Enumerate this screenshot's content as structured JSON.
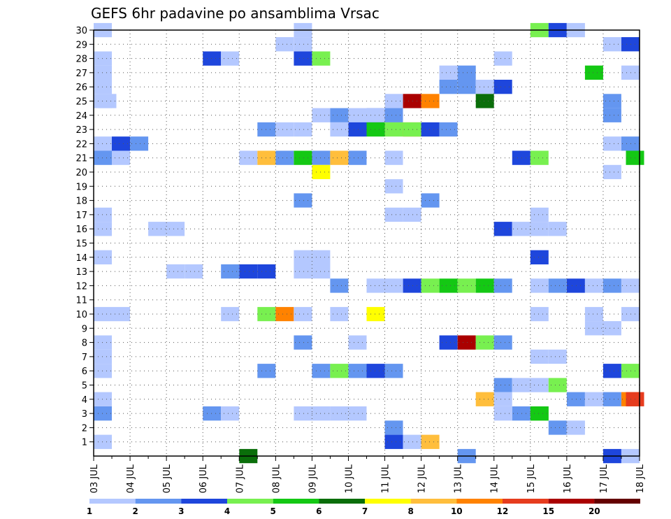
{
  "chart_data": {
    "type": "heatmap",
    "title": "GEFS 6hr padavine po ansamblima Vrsac",
    "x_ticks": [
      "03 JUL",
      "04 JUL",
      "05 JUL",
      "06 JUL",
      "07 JUL",
      "08 JUL",
      "09 JUL",
      "10 JUL",
      "11 JUL",
      "12 JUL",
      "13 JUL",
      "14 JUL",
      "15 JUL",
      "16 JUL",
      "17 JUL",
      "18 JUL"
    ],
    "y_ticks": [
      "1",
      "2",
      "3",
      "4",
      "5",
      "6",
      "7",
      "8",
      "9",
      "10",
      "11",
      "12",
      "13",
      "14",
      "15",
      "16",
      "17",
      "18",
      "19",
      "20",
      "21",
      "22",
      "23",
      "24",
      "25",
      "26",
      "27",
      "28",
      "29",
      "30"
    ],
    "legend": {
      "colors": [
        "#b4c8ff",
        "#6496f0",
        "#1e46dc",
        "#78f050",
        "#14c814",
        "#0a6e0a",
        "#ffff00",
        "#ffbe3c",
        "#ff8200",
        "#e63c1e",
        "#aa0000",
        "#640000"
      ],
      "labels": [
        "1",
        "2",
        "3",
        "4",
        "5",
        "6",
        "7",
        "8",
        "10",
        "12",
        "15",
        "20"
      ]
    },
    "grid": true,
    "cells": [
      [
        0.5,
        30,
        1
      ],
      [
        11.5,
        30,
        1
      ],
      [
        24.5,
        30,
        4
      ],
      [
        25.5,
        30,
        3
      ],
      [
        26.5,
        30,
        1
      ],
      [
        10.5,
        29,
        1
      ],
      [
        11.5,
        29,
        1
      ],
      [
        28.5,
        29,
        1
      ],
      [
        29.5,
        29,
        3
      ],
      [
        0.5,
        28,
        1
      ],
      [
        6.5,
        28,
        3
      ],
      [
        7.5,
        28,
        1
      ],
      [
        11.5,
        28,
        3
      ],
      [
        12.5,
        28,
        4
      ],
      [
        22.5,
        28,
        1
      ],
      [
        0.5,
        27,
        1
      ],
      [
        19.5,
        27,
        1
      ],
      [
        20.5,
        27,
        2
      ],
      [
        27.5,
        27,
        5
      ],
      [
        29.5,
        27,
        1
      ],
      [
        0.5,
        26,
        1
      ],
      [
        19.5,
        26,
        2
      ],
      [
        20.5,
        26,
        2
      ],
      [
        21.5,
        26,
        1
      ],
      [
        22.5,
        26,
        3
      ],
      [
        0.5,
        25,
        1
      ],
      [
        0.75,
        25,
        1
      ],
      [
        16.5,
        25,
        1
      ],
      [
        17.5,
        25,
        11
      ],
      [
        18.5,
        25,
        9
      ],
      [
        21.5,
        25,
        6
      ],
      [
        28.5,
        25,
        2
      ],
      [
        12.5,
        24,
        1
      ],
      [
        13.5,
        24,
        2
      ],
      [
        14.5,
        24,
        1
      ],
      [
        15.5,
        24,
        3
      ],
      [
        15.5,
        24,
        1
      ],
      [
        16.5,
        24,
        1
      ],
      [
        16.5,
        24,
        2
      ],
      [
        28.5,
        24,
        2
      ],
      [
        9.5,
        23,
        2
      ],
      [
        10.5,
        23,
        1
      ],
      [
        11.5,
        23,
        1
      ],
      [
        13.5,
        23,
        1
      ],
      [
        14.5,
        23,
        3
      ],
      [
        15.5,
        23,
        5
      ],
      [
        16.5,
        23,
        4
      ],
      [
        17.5,
        23,
        9
      ],
      [
        17.5,
        23,
        4
      ],
      [
        18.5,
        23,
        3
      ],
      [
        19.5,
        23,
        2
      ],
      [
        0.5,
        22,
        1
      ],
      [
        1.5,
        22,
        3
      ],
      [
        2.5,
        22,
        2
      ],
      [
        28.5,
        22,
        1
      ],
      [
        29.5,
        22,
        2
      ],
      [
        0.5,
        21,
        2
      ],
      [
        1.5,
        21,
        1
      ],
      [
        8.5,
        21,
        1
      ],
      [
        9.5,
        21,
        8
      ],
      [
        10.5,
        21,
        2
      ],
      [
        11.5,
        21,
        5
      ],
      [
        12.5,
        21,
        2
      ],
      [
        13.5,
        21,
        8
      ],
      [
        14.5,
        21,
        2
      ],
      [
        16.5,
        21,
        1
      ],
      [
        23.5,
        21,
        3
      ],
      [
        24.5,
        21,
        4
      ],
      [
        29.75,
        21,
        5
      ],
      [
        12.5,
        20,
        7
      ],
      [
        28.5,
        20,
        1
      ],
      [
        16.5,
        19,
        1
      ],
      [
        11.5,
        18,
        2
      ],
      [
        18.5,
        18,
        2
      ],
      [
        0.5,
        17,
        1
      ],
      [
        16.5,
        17,
        1
      ],
      [
        17.5,
        17,
        1
      ],
      [
        24.5,
        17,
        1
      ],
      [
        0.5,
        16,
        1
      ],
      [
        3.5,
        16,
        1
      ],
      [
        4.5,
        16,
        1
      ],
      [
        22.5,
        16,
        3
      ],
      [
        23.5,
        16,
        1
      ],
      [
        24.5,
        16,
        1
      ],
      [
        25.5,
        16,
        1
      ],
      [
        0.5,
        14,
        1
      ],
      [
        11.5,
        14,
        1
      ],
      [
        12.5,
        14,
        1
      ],
      [
        24.5,
        14,
        3
      ],
      [
        4.5,
        13,
        1
      ],
      [
        5.5,
        13,
        1
      ],
      [
        7.5,
        13,
        2
      ],
      [
        8.5,
        13,
        3
      ],
      [
        9.5,
        13,
        3
      ],
      [
        11.5,
        13,
        1
      ],
      [
        12.5,
        13,
        1
      ],
      [
        13.5,
        12,
        2
      ],
      [
        15.5,
        12,
        1
      ],
      [
        16.5,
        12,
        1
      ],
      [
        17.5,
        12,
        3
      ],
      [
        18.5,
        12,
        4
      ],
      [
        19.5,
        12,
        5
      ],
      [
        20.5,
        12,
        4
      ],
      [
        21.5,
        12,
        5
      ],
      [
        22.5,
        12,
        2
      ],
      [
        24.5,
        12,
        1
      ],
      [
        25.5,
        12,
        2
      ],
      [
        26.5,
        12,
        3
      ],
      [
        27.5,
        12,
        1
      ],
      [
        28.5,
        12,
        2
      ],
      [
        29.5,
        12,
        1
      ],
      [
        0.5,
        10,
        1
      ],
      [
        1.5,
        10,
        1
      ],
      [
        7.5,
        10,
        1
      ],
      [
        9.5,
        10,
        4
      ],
      [
        10.5,
        10,
        9
      ],
      [
        11.5,
        10,
        1
      ],
      [
        13.5,
        10,
        1
      ],
      [
        15.5,
        10,
        7
      ],
      [
        24.5,
        10,
        1
      ],
      [
        27.5,
        10,
        1
      ],
      [
        29.5,
        10,
        1
      ],
      [
        27.5,
        9,
        1
      ],
      [
        28.5,
        9,
        1
      ],
      [
        0.5,
        8,
        1
      ],
      [
        11.5,
        8,
        2
      ],
      [
        14.5,
        8,
        1
      ],
      [
        19.5,
        8,
        3
      ],
      [
        20.5,
        8,
        11
      ],
      [
        21.5,
        8,
        4
      ],
      [
        22.5,
        8,
        2
      ],
      [
        0.5,
        7,
        1
      ],
      [
        24.5,
        7,
        1
      ],
      [
        25.5,
        7,
        1
      ],
      [
        0.5,
        6,
        1
      ],
      [
        9.5,
        6,
        2
      ],
      [
        12.5,
        6,
        2
      ],
      [
        13.5,
        6,
        4
      ],
      [
        14.5,
        6,
        2
      ],
      [
        15.5,
        6,
        3
      ],
      [
        16.5,
        6,
        2
      ],
      [
        28.5,
        6,
        3
      ],
      [
        29.5,
        6,
        4
      ],
      [
        22.5,
        5,
        2
      ],
      [
        23.5,
        5,
        1
      ],
      [
        24.5,
        5,
        1
      ],
      [
        25.5,
        5,
        4
      ],
      [
        0.5,
        4,
        1
      ],
      [
        21.5,
        4,
        8
      ],
      [
        22.5,
        4,
        1
      ],
      [
        26.5,
        4,
        2
      ],
      [
        27.5,
        4,
        1
      ],
      [
        28.5,
        4,
        2
      ],
      [
        29.5,
        4,
        9
      ],
      [
        29.75,
        4,
        10
      ],
      [
        0.5,
        3,
        2
      ],
      [
        6.5,
        3,
        2
      ],
      [
        7.5,
        3,
        1
      ],
      [
        11.5,
        3,
        1
      ],
      [
        12.5,
        3,
        1
      ],
      [
        13.5,
        3,
        1
      ],
      [
        14.5,
        3,
        1
      ],
      [
        22.5,
        3,
        1
      ],
      [
        23.5,
        3,
        2
      ],
      [
        24.5,
        3,
        4
      ],
      [
        24.5,
        3,
        5
      ],
      [
        16.5,
        2,
        2
      ],
      [
        25.5,
        2,
        2
      ],
      [
        26.5,
        2,
        1
      ],
      [
        0.5,
        1,
        1
      ],
      [
        16.5,
        1,
        3
      ],
      [
        17.5,
        1,
        1
      ],
      [
        18.5,
        1,
        8
      ],
      [
        8.5,
        0,
        6
      ],
      [
        20.5,
        0,
        2
      ],
      [
        28.5,
        0,
        3
      ],
      [
        29.5,
        0,
        1
      ]
    ]
  }
}
